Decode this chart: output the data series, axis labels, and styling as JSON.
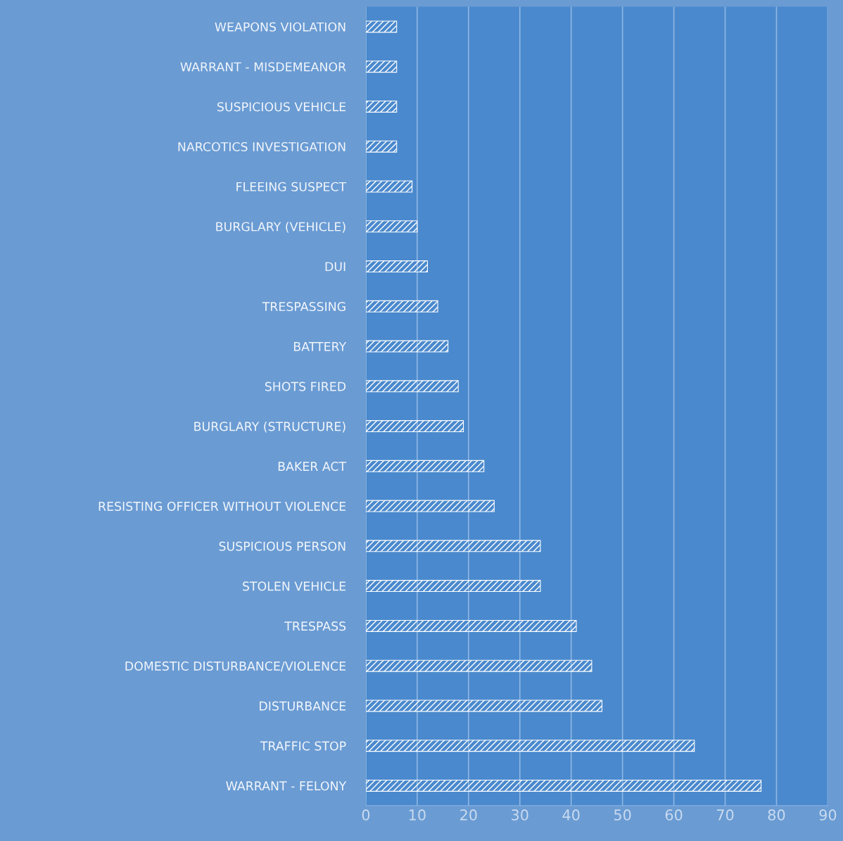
{
  "chart_data": {
    "type": "bar",
    "orientation": "horizontal",
    "categories": [
      "WEAPONS VIOLATION",
      "WARRANT - MISDEMEANOR",
      "SUSPICIOUS VEHICLE",
      "NARCOTICS INVESTIGATION",
      "FLEEING SUSPECT",
      "BURGLARY (VEHICLE)",
      "DUI",
      "TRESPASSING",
      "BATTERY",
      "SHOTS FIRED",
      "BURGLARY (STRUCTURE)",
      "BAKER ACT",
      "RESISTING OFFICER WITHOUT VIOLENCE",
      "SUSPICIOUS PERSON",
      "STOLEN VEHICLE",
      "TRESPASS",
      "DOMESTIC DISTURBANCE/VIOLENCE",
      "DISTURBANCE",
      "TRAFFIC STOP",
      "WARRANT - FELONY"
    ],
    "values": [
      6,
      6,
      6,
      6,
      9,
      10,
      12,
      14,
      16,
      18,
      19,
      23,
      25,
      34,
      34,
      41,
      44,
      46,
      64,
      77
    ],
    "color": "#ffffff",
    "xlim": [
      0,
      90
    ],
    "xticks": [
      0,
      10,
      20,
      30,
      40,
      50,
      60,
      70,
      80,
      90
    ],
    "grid": "x"
  }
}
